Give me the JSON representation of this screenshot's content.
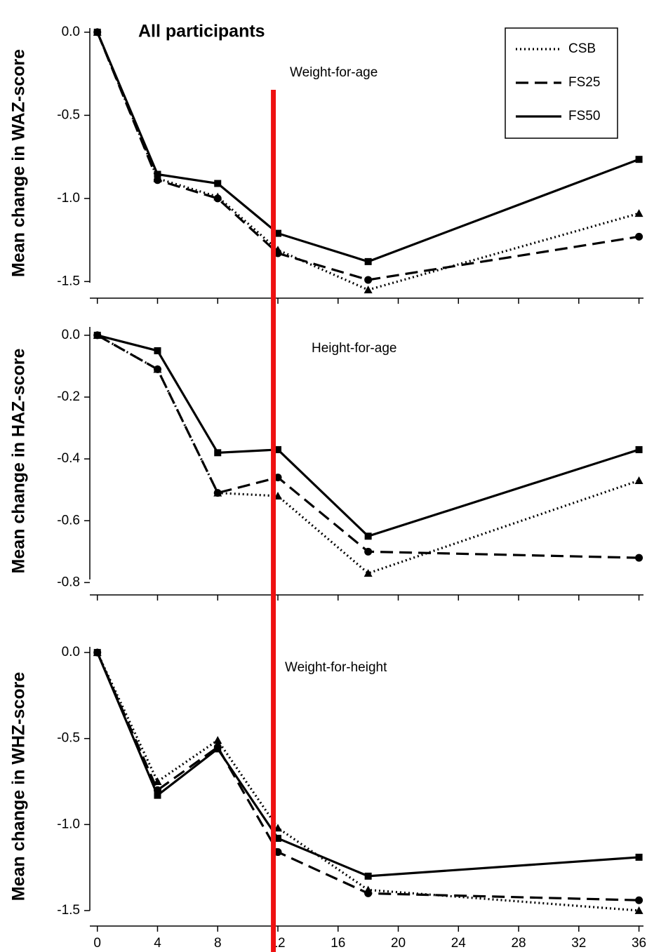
{
  "chart_data": [
    {
      "type": "line",
      "title": "All participants",
      "annotation": "Weight-for-age",
      "ylabel": "Mean change in WAZ-score",
      "x": [
        0,
        4,
        8,
        12,
        18,
        36
      ],
      "xlim": [
        -0.5,
        36.3
      ],
      "xticks": [
        0,
        4,
        8,
        12,
        16,
        20,
        24,
        28,
        32,
        36
      ],
      "show_xtick_labels": false,
      "ylim": [
        -1.6,
        0.025
      ],
      "yticks": [
        {
          "value": 0,
          "label": "0.0"
        },
        -0.5,
        {
          "value": -1,
          "label": "-1.0"
        },
        -1.5
      ],
      "legend": "upper right",
      "series": [
        {
          "name": "CSB",
          "color": "#000000",
          "dash": "dotted",
          "marker": "triangle",
          "values": [
            0,
            -0.88,
            -0.99,
            -1.31,
            -1.55,
            -1.09
          ]
        },
        {
          "name": "FS25",
          "color": "#000000",
          "dash": "dashed",
          "marker": "circle",
          "values": [
            0,
            -0.89,
            -1.0,
            -1.33,
            -1.49,
            -1.23
          ]
        },
        {
          "name": "FS50",
          "color": "#000000",
          "dash": "solid",
          "marker": "square",
          "values": [
            0,
            -0.855,
            -0.91,
            -1.21,
            -1.38,
            -0.765
          ]
        }
      ]
    },
    {
      "type": "line",
      "annotation": "Height-for-age",
      "ylabel": "Mean change in HAZ-score",
      "x": [
        0,
        4,
        8,
        12,
        18,
        36
      ],
      "xlim": [
        -0.5,
        36.3
      ],
      "xticks": [
        0,
        4,
        8,
        12,
        16,
        20,
        24,
        28,
        32,
        36
      ],
      "show_xtick_labels": false,
      "ylim": [
        -0.84,
        0.027
      ],
      "yticks": [
        {
          "value": 0,
          "label": "0.0"
        },
        -0.2,
        -0.4,
        -0.6,
        -0.8
      ],
      "series": [
        {
          "color": "#000000",
          "dash": "dotted",
          "marker": "triangle",
          "values": [
            0,
            -0.11,
            -0.51,
            -0.52,
            -0.77,
            -0.47
          ]
        },
        {
          "color": "#000000",
          "dash": "dashed",
          "marker": "circle",
          "values": [
            0,
            -0.11,
            -0.51,
            -0.46,
            -0.7,
            -0.72
          ]
        },
        {
          "color": "#000000",
          "dash": "solid",
          "marker": "square",
          "values": [
            0,
            -0.05,
            -0.38,
            -0.37,
            -0.65,
            -0.37
          ]
        }
      ]
    },
    {
      "type": "line",
      "annotation": "Weight-for-height",
      "ylabel": "Mean change in WHZ-score",
      "x": [
        0,
        4,
        8,
        12,
        18,
        36
      ],
      "xlim": [
        -0.5,
        36.3
      ],
      "xticks": [
        0,
        4,
        8,
        12,
        16,
        20,
        24,
        28,
        32,
        36
      ],
      "show_xtick_labels": true,
      "ylim": [
        -1.59,
        0.033
      ],
      "yticks": [
        {
          "value": 0,
          "label": "0.0"
        },
        -0.5,
        {
          "value": -1,
          "label": "-1.0"
        },
        -1.5
      ],
      "series": [
        {
          "color": "#000000",
          "dash": "dotted",
          "marker": "triangle",
          "values": [
            0,
            -0.75,
            -0.51,
            -1.02,
            -1.38,
            -1.5
          ]
        },
        {
          "color": "#000000",
          "dash": "dashed",
          "marker": "circle",
          "values": [
            0,
            -0.8,
            -0.55,
            -1.16,
            -1.4,
            -1.44
          ]
        },
        {
          "color": "#000000",
          "dash": "solid",
          "marker": "square",
          "values": [
            0,
            -0.83,
            -0.56,
            -1.08,
            -1.3,
            -1.19
          ]
        }
      ]
    }
  ],
  "reference_line": {
    "x": 11.7,
    "color": "#ee1111"
  }
}
